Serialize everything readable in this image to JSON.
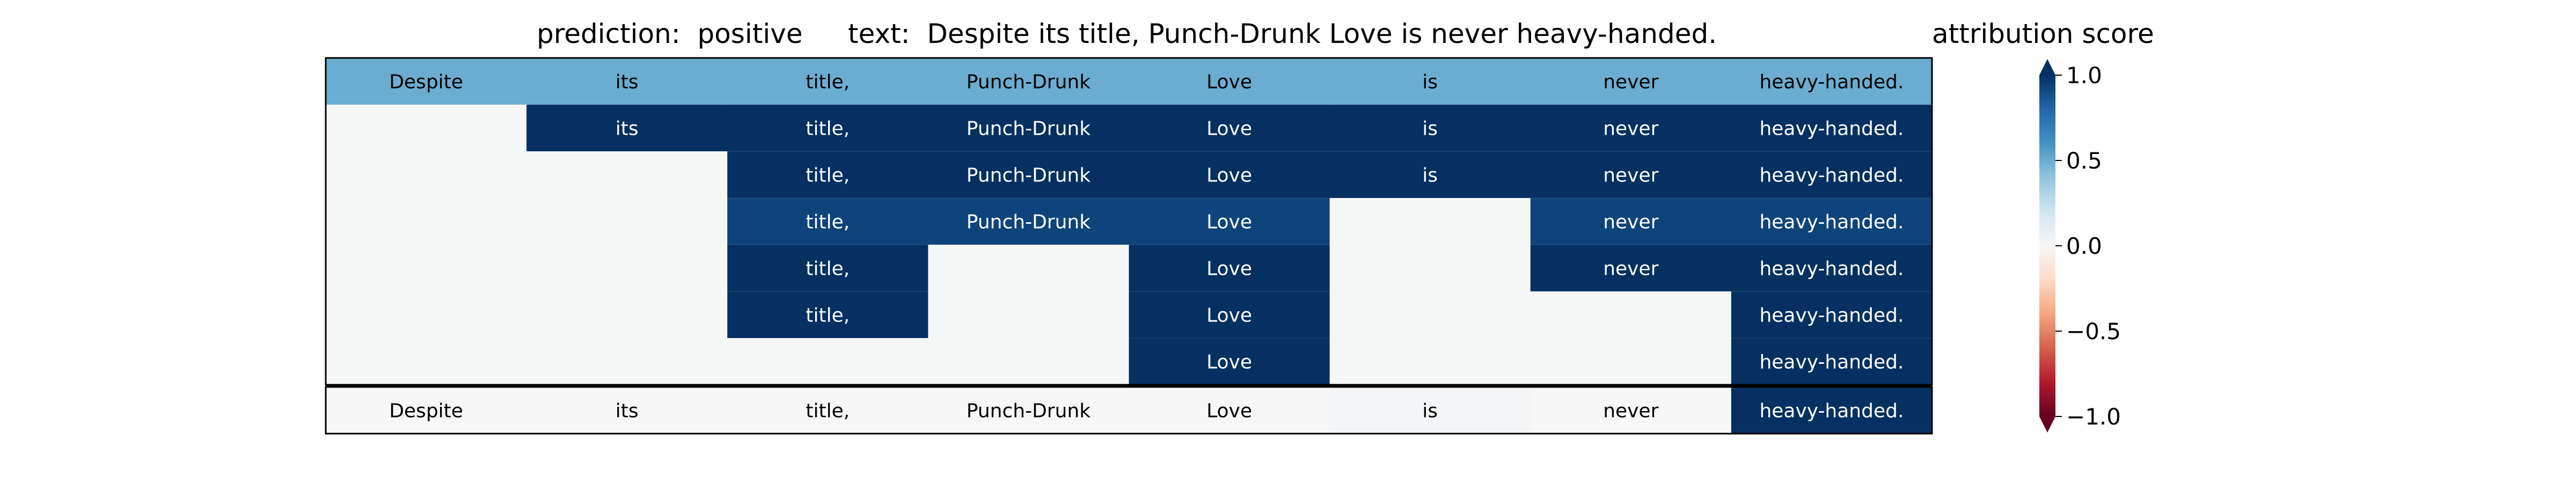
{
  "chart_data": {
    "type": "heatmap",
    "title_prediction": "prediction:  positive",
    "title_text": "text:  Despite its title, Punch-Drunk Love is never heavy-handed.",
    "tokens": [
      "Despite",
      "its",
      "title,",
      "Punch-Drunk",
      "Love",
      "is",
      "never",
      "heavy-handed."
    ],
    "rows": [
      [
        0.5,
        0.5,
        0.5,
        0.5,
        0.5,
        0.5,
        0.5,
        0.5
      ],
      [
        null,
        1.0,
        1.0,
        1.0,
        1.0,
        1.0,
        1.0,
        1.0
      ],
      [
        null,
        null,
        1.0,
        1.0,
        1.0,
        1.0,
        1.0,
        1.0
      ],
      [
        null,
        null,
        0.93,
        0.93,
        0.93,
        null,
        0.93,
        0.93
      ],
      [
        null,
        null,
        1.0,
        null,
        1.0,
        null,
        1.0,
        1.0
      ],
      [
        null,
        null,
        1.0,
        null,
        1.0,
        null,
        null,
        1.0
      ],
      [
        null,
        null,
        null,
        null,
        1.0,
        null,
        null,
        1.0
      ]
    ],
    "summary_row": [
      0.0,
      0.0,
      0.0,
      0.0,
      0.0,
      0.02,
      0.0,
      1.0
    ],
    "colorbar": {
      "label": "attribution score",
      "range": [
        -1.0,
        1.0
      ],
      "ticks": [
        1.0,
        0.5,
        0.0,
        -0.5,
        -1.0
      ],
      "tick_labels": [
        "1.0",
        "0.5",
        "0.0",
        "−0.5",
        "−1.0"
      ],
      "extend": "both",
      "colormap": "RdBu"
    },
    "empty_cell_color": "#f5f7f7"
  }
}
